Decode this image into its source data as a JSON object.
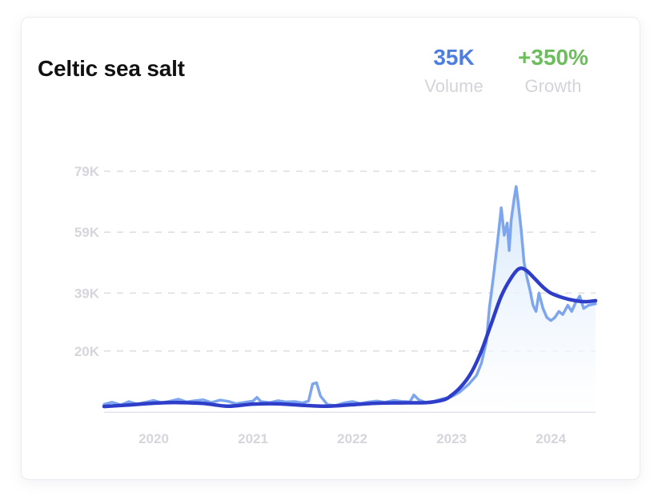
{
  "header": {
    "title": "Celtic sea salt"
  },
  "stats": {
    "volume": {
      "value": "35K",
      "label": "Volume",
      "color": "#4e7fe0"
    },
    "growth": {
      "value": "+350%",
      "label": "Growth",
      "color": "#6cbd5b"
    }
  },
  "colors": {
    "raw_line": "#7ea6ee",
    "trend_line": "#2f3ec9",
    "area_top": "#d6e8fb",
    "grid": "#dcdde2"
  },
  "chart_data": {
    "type": "line",
    "title": "Celtic sea salt",
    "xlabel": "",
    "ylabel": "",
    "x_range": [
      2019.5,
      2024.45
    ],
    "ylim": [
      0,
      79000
    ],
    "y_ticks": [
      {
        "value": 20000,
        "label": "20K"
      },
      {
        "value": 39000,
        "label": "39K"
      },
      {
        "value": 59000,
        "label": "59K"
      },
      {
        "value": 79000,
        "label": "79K"
      }
    ],
    "x_ticks": [
      {
        "value": 2020,
        "label": "2020"
      },
      {
        "value": 2021,
        "label": "2021"
      },
      {
        "value": 2022,
        "label": "2022"
      },
      {
        "value": 2023,
        "label": "2023"
      },
      {
        "value": 2024,
        "label": "2024"
      }
    ],
    "grid": true,
    "legend": "none",
    "series": [
      {
        "role": "volume",
        "points": [
          [
            2019.5,
            2500
          ],
          [
            2019.58,
            3200
          ],
          [
            2019.67,
            2300
          ],
          [
            2019.75,
            3400
          ],
          [
            2019.83,
            2600
          ],
          [
            2019.92,
            3200
          ],
          [
            2020.0,
            3800
          ],
          [
            2020.08,
            3000
          ],
          [
            2020.17,
            3600
          ],
          [
            2020.25,
            4200
          ],
          [
            2020.33,
            3300
          ],
          [
            2020.42,
            3700
          ],
          [
            2020.5,
            4000
          ],
          [
            2020.58,
            3100
          ],
          [
            2020.67,
            3900
          ],
          [
            2020.75,
            3500
          ],
          [
            2020.83,
            2700
          ],
          [
            2020.92,
            3200
          ],
          [
            2021.0,
            3600
          ],
          [
            2021.04,
            4800
          ],
          [
            2021.08,
            3400
          ],
          [
            2021.17,
            3100
          ],
          [
            2021.25,
            3700
          ],
          [
            2021.33,
            3300
          ],
          [
            2021.42,
            3400
          ],
          [
            2021.5,
            3000
          ],
          [
            2021.56,
            3600
          ],
          [
            2021.6,
            9200
          ],
          [
            2021.64,
            9600
          ],
          [
            2021.68,
            5200
          ],
          [
            2021.75,
            2400
          ],
          [
            2021.83,
            2100
          ],
          [
            2021.92,
            3000
          ],
          [
            2022.0,
            3400
          ],
          [
            2022.08,
            2800
          ],
          [
            2022.17,
            3300
          ],
          [
            2022.25,
            3600
          ],
          [
            2022.33,
            3200
          ],
          [
            2022.42,
            3800
          ],
          [
            2022.5,
            3500
          ],
          [
            2022.58,
            3300
          ],
          [
            2022.62,
            5600
          ],
          [
            2022.67,
            4000
          ],
          [
            2022.75,
            3000
          ],
          [
            2022.83,
            3600
          ],
          [
            2022.92,
            4400
          ],
          [
            2023.0,
            5000
          ],
          [
            2023.08,
            6500
          ],
          [
            2023.17,
            9000
          ],
          [
            2023.25,
            12000
          ],
          [
            2023.3,
            16000
          ],
          [
            2023.35,
            23000
          ],
          [
            2023.38,
            34000
          ],
          [
            2023.42,
            44000
          ],
          [
            2023.46,
            55000
          ],
          [
            2023.5,
            67000
          ],
          [
            2023.53,
            58000
          ],
          [
            2023.56,
            62000
          ],
          [
            2023.58,
            53000
          ],
          [
            2023.6,
            63000
          ],
          [
            2023.63,
            70000
          ],
          [
            2023.65,
            74000
          ],
          [
            2023.67,
            69000
          ],
          [
            2023.7,
            60000
          ],
          [
            2023.73,
            49000
          ],
          [
            2023.76,
            44000
          ],
          [
            2023.79,
            40000
          ],
          [
            2023.82,
            35000
          ],
          [
            2023.85,
            33000
          ],
          [
            2023.88,
            39000
          ],
          [
            2023.92,
            34000
          ],
          [
            2023.96,
            31000
          ],
          [
            2024.0,
            30000
          ],
          [
            2024.04,
            31000
          ],
          [
            2024.08,
            33000
          ],
          [
            2024.12,
            32000
          ],
          [
            2024.17,
            35000
          ],
          [
            2024.21,
            33000
          ],
          [
            2024.25,
            36000
          ],
          [
            2024.29,
            38000
          ],
          [
            2024.33,
            34000
          ],
          [
            2024.38,
            35000
          ],
          [
            2024.45,
            35500
          ]
        ]
      },
      {
        "role": "trend",
        "points": [
          [
            2019.5,
            1800
          ],
          [
            2019.75,
            2300
          ],
          [
            2020.0,
            2900
          ],
          [
            2020.25,
            3100
          ],
          [
            2020.5,
            2800
          ],
          [
            2020.75,
            1900
          ],
          [
            2021.0,
            2600
          ],
          [
            2021.25,
            2700
          ],
          [
            2021.5,
            2200
          ],
          [
            2021.75,
            1900
          ],
          [
            2022.0,
            2400
          ],
          [
            2022.25,
            2900
          ],
          [
            2022.5,
            3000
          ],
          [
            2022.75,
            3100
          ],
          [
            2022.92,
            4000
          ],
          [
            2023.0,
            5500
          ],
          [
            2023.1,
            8500
          ],
          [
            2023.2,
            13000
          ],
          [
            2023.3,
            20000
          ],
          [
            2023.4,
            29000
          ],
          [
            2023.5,
            38000
          ],
          [
            2023.6,
            44000
          ],
          [
            2023.68,
            47000
          ],
          [
            2023.75,
            46500
          ],
          [
            2023.83,
            44000
          ],
          [
            2023.92,
            41000
          ],
          [
            2024.0,
            39000
          ],
          [
            2024.12,
            37500
          ],
          [
            2024.25,
            36500
          ],
          [
            2024.35,
            36200
          ],
          [
            2024.45,
            36500
          ]
        ]
      }
    ]
  }
}
